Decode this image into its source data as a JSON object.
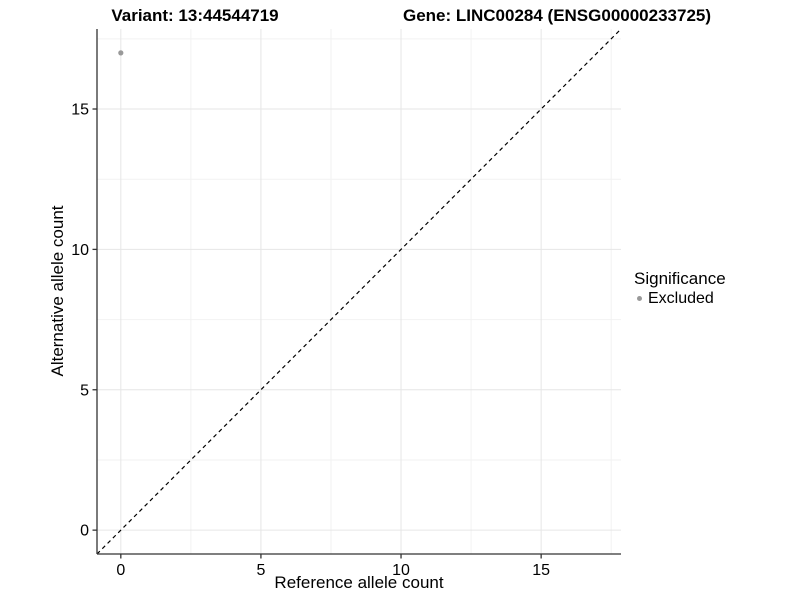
{
  "titles": {
    "variant": "Variant: 13:44544719",
    "gene": "Gene: LINC00284 (ENSG00000233725)"
  },
  "chart_data": {
    "type": "scatter",
    "xlabel": "Reference allele count",
    "ylabel": "Alternative allele count",
    "xlim": [
      -0.85,
      17.85
    ],
    "ylim": [
      -0.85,
      17.85
    ],
    "x_ticks": [
      0,
      5,
      10,
      15
    ],
    "y_ticks": [
      0,
      5,
      10,
      15
    ],
    "x_tick_labels": [
      "0",
      "5",
      "10",
      "15"
    ],
    "y_tick_labels": [
      "0",
      "5",
      "10",
      "15"
    ],
    "x_minor_ticks": [
      2.5,
      7.5,
      12.5,
      17.5
    ],
    "y_minor_ticks": [
      2.5,
      7.5,
      12.5,
      17.5
    ],
    "grid": "major+minor",
    "series": [
      {
        "name": "Excluded",
        "color": "#999999",
        "points": [
          {
            "x": 0,
            "y": 17
          }
        ]
      }
    ],
    "reference_line": {
      "kind": "identity y=x",
      "style": "dashed",
      "color": "#000000"
    },
    "legend": {
      "title": "Significance",
      "position": "right",
      "entries": [
        {
          "label": "Excluded",
          "marker": "circle",
          "color": "#999999"
        }
      ]
    }
  },
  "colors": {
    "background": "#ffffff",
    "axis_line": "#333333",
    "tick_mark": "#333333",
    "tick_text": "#000000",
    "grid_major": "#e6e6e6",
    "grid_minor": "#f2f2f2",
    "point": "#999999",
    "dashed_line": "#000000"
  }
}
